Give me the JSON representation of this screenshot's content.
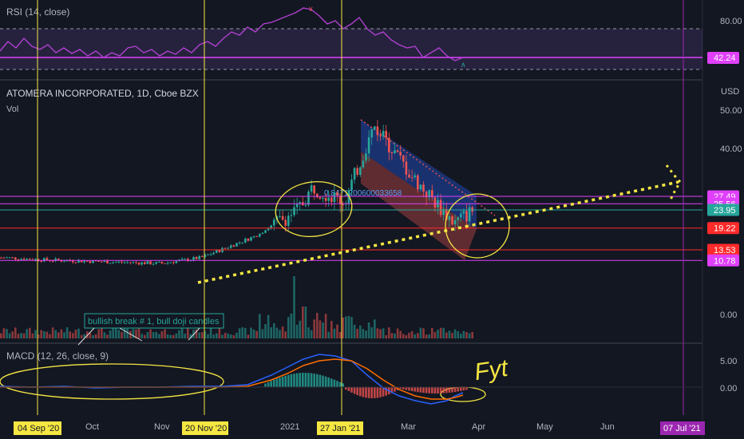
{
  "panes": {
    "rsi_label": "RSI (14, close)",
    "title": "ATOMERA INCORPORATED, 1D, Cboe BZX",
    "vol_label": "Vol",
    "macd_label": "MACD (12, 26, close, 9)",
    "currency": "USD"
  },
  "annotations": {
    "note": "bullish break # 1, bull doji candles",
    "fib_text": "0.8471200600033658",
    "scribble": "Fyt"
  },
  "colors": {
    "background": "#131722",
    "up": "#26a69a",
    "down": "#ef5350",
    "rsi": "#b040d0",
    "macd": "#2962ff",
    "signal": "#ff6d00",
    "yellow": "#f5e642",
    "magenta": "#e040fb",
    "red": "#ff2a2a"
  },
  "chart_data": [
    {
      "type": "line",
      "title": "RSI (14, close)",
      "y_ticks": [
        "80.00"
      ],
      "current_value_label": "42.24",
      "levels": [
        70,
        30
      ]
    },
    {
      "type": "candlestick",
      "title": "ATOMERA INCORPORATED, 1D, Cboe BZX",
      "ylabel": "USD",
      "y_ticks": [
        "50.00",
        "40.00",
        "0.00"
      ],
      "x_ticks": [
        "Oct",
        "Nov",
        "2021",
        "Mar",
        "Apr",
        "May",
        "Jun"
      ],
      "marked_dates": [
        "04 Sep '20",
        "20 Nov '20",
        "27 Jan '21",
        "07 Jul '21"
      ],
      "horizontal_levels": [
        {
          "value": 27.49,
          "label": "27.49",
          "color": "#e040fb"
        },
        {
          "value": 25.56,
          "label": "25.56",
          "color": "#e040fb"
        },
        {
          "value": 23.95,
          "label": "23.95",
          "color": "#26a69a"
        },
        {
          "value": 19.22,
          "label": "19.22",
          "color": "#ff2a2a"
        },
        {
          "value": 13.53,
          "label": "13.53",
          "color": "#ff2a2a"
        },
        {
          "value": 10.78,
          "label": "10.78",
          "color": "#e040fb"
        }
      ],
      "price_path": [
        {
          "date": "2020-08-20",
          "close": 11.5
        },
        {
          "date": "2020-09-04",
          "close": 11.0
        },
        {
          "date": "2020-10-01",
          "close": 10.5
        },
        {
          "date": "2020-11-01",
          "close": 10.0
        },
        {
          "date": "2020-11-20",
          "close": 11.5
        },
        {
          "date": "2020-12-15",
          "close": 17.0
        },
        {
          "date": "2021-01-05",
          "close": 24.0
        },
        {
          "date": "2021-01-12",
          "close": 30.0
        },
        {
          "date": "2021-01-27",
          "close": 26.0
        },
        {
          "date": "2021-02-10",
          "close": 46.0
        },
        {
          "date": "2021-03-01",
          "close": 32.0
        },
        {
          "date": "2021-03-20",
          "close": 20.5
        },
        {
          "date": "2021-03-29",
          "close": 23.95
        }
      ]
    },
    {
      "type": "line",
      "title": "MACD (12, 26, close, 9)",
      "y_ticks": [
        "5.00",
        "0.00"
      ],
      "series": []
    }
  ]
}
